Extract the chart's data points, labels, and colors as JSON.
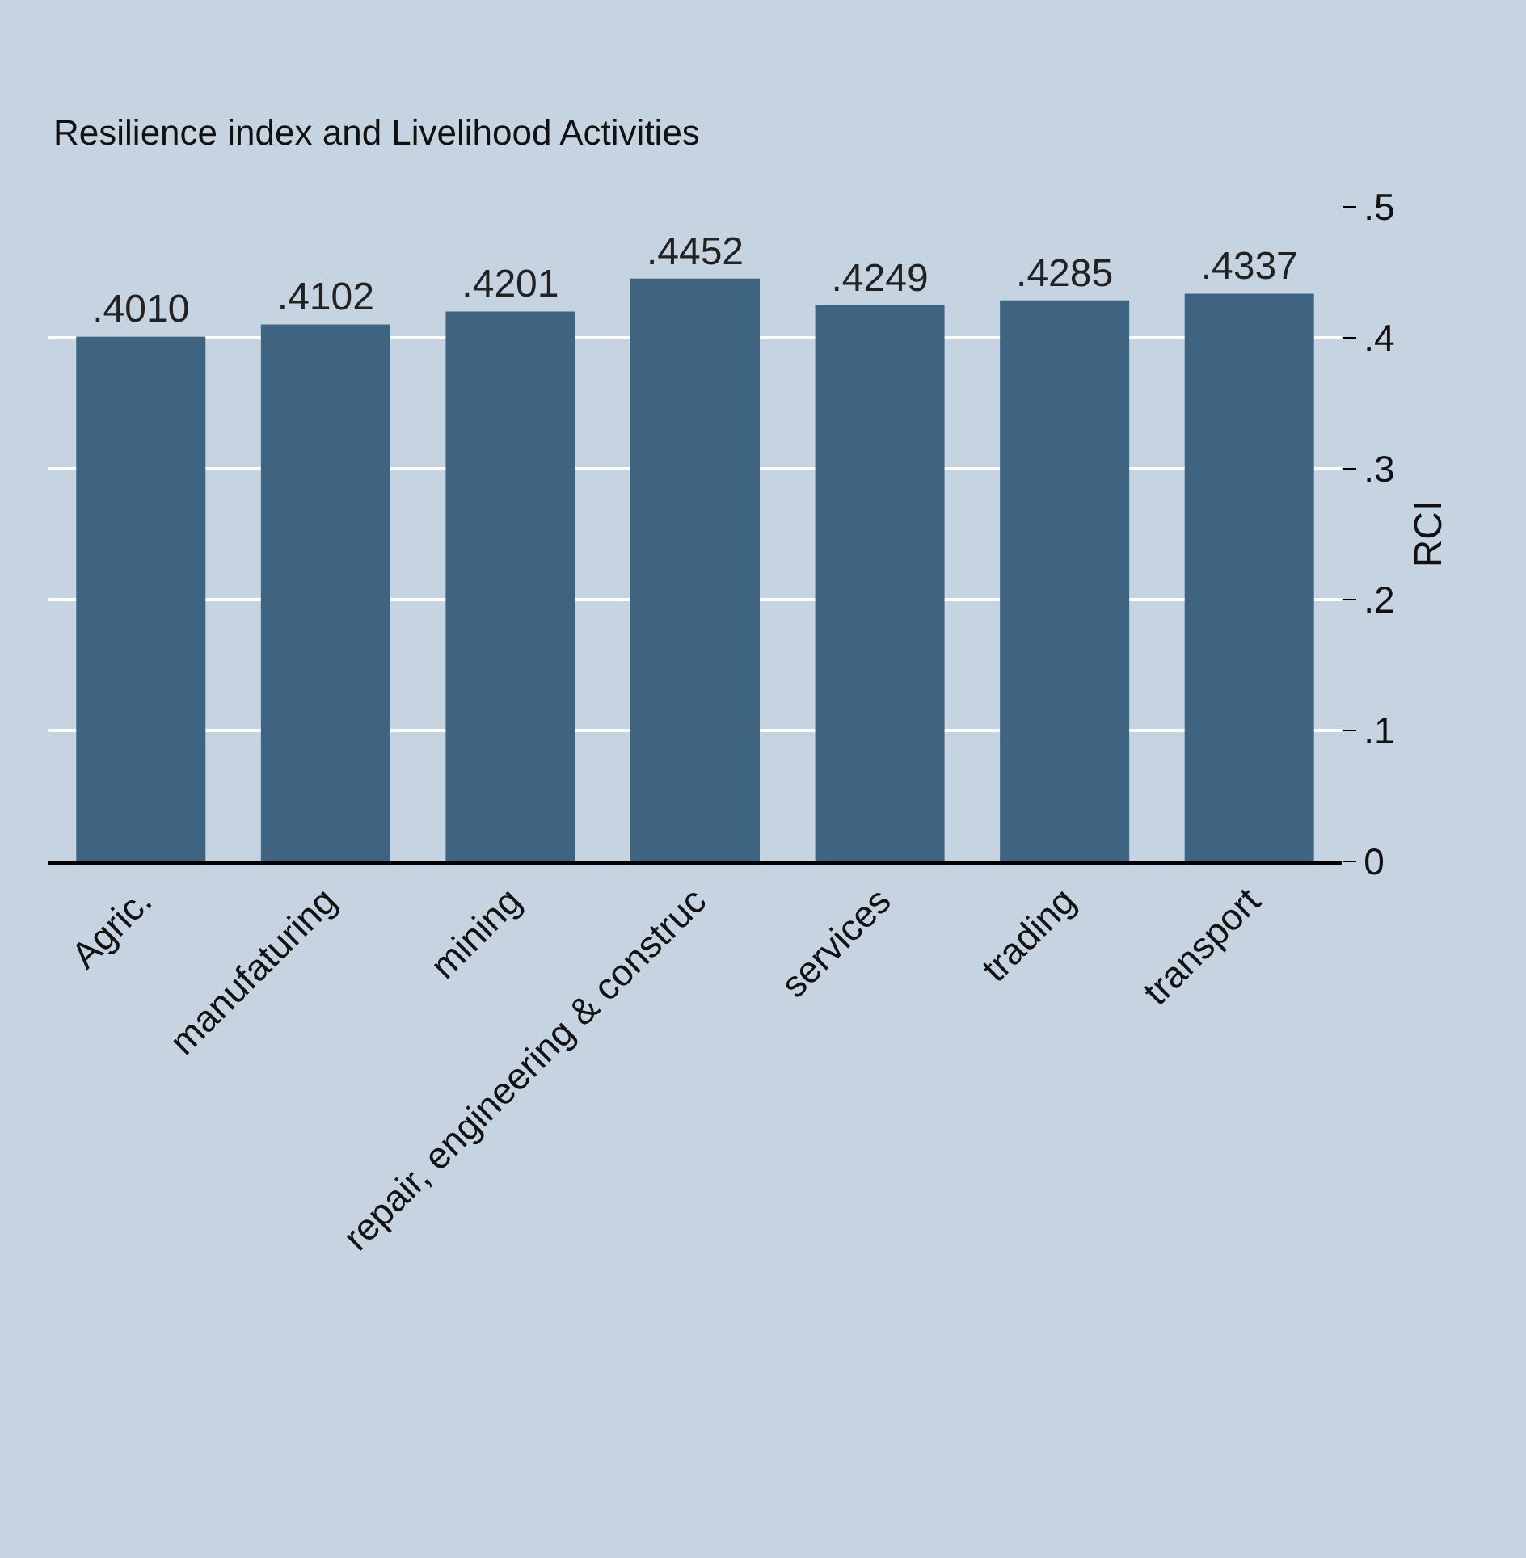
{
  "chart_data": {
    "type": "bar",
    "title": "Resilience index and Livelihood Activities",
    "ylabel": "RCI",
    "categories": [
      "Agric.",
      "manufaturing",
      "mining",
      "repair, engineering & construc",
      "services",
      "trading",
      "transport"
    ],
    "values": [
      0.401,
      0.4102,
      0.4201,
      0.4452,
      0.4249,
      0.4285,
      0.4337
    ],
    "value_labels": [
      ".4010",
      ".4102",
      ".4201",
      ".4452",
      ".4249",
      ".4285",
      ".4337"
    ],
    "color": "#3e6482",
    "ylim": [
      0,
      0.5
    ],
    "yticks": [
      0,
      {
        "value": 0.1,
        "label": ".1"
      },
      {
        "value": 0.2,
        "label": ".2"
      },
      {
        "value": 0.3,
        "label": ".3"
      },
      {
        "value": 0.4,
        "label": ".4"
      },
      {
        "value": 0.5,
        "label": ".5"
      }
    ],
    "grid": "y"
  }
}
